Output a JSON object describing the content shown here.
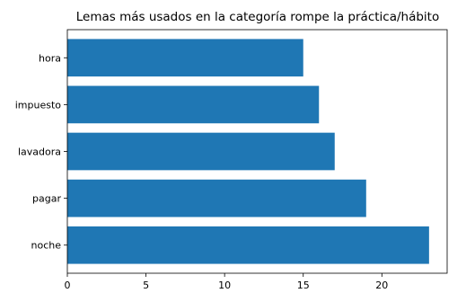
{
  "chart_data": {
    "type": "bar",
    "orientation": "horizontal",
    "title": "Lemas más usados en la categoría rompe la práctica/hábito",
    "xlabel": "",
    "ylabel": "",
    "categories": [
      "noche",
      "pagar",
      "lavadora",
      "impuesto",
      "hora"
    ],
    "values": [
      23,
      19,
      17,
      16,
      15
    ],
    "xlim": [
      0,
      24.15
    ],
    "xticks": [
      0,
      5,
      10,
      15,
      20
    ],
    "grid": false,
    "legend": "none",
    "bar_color": "#1f77b4"
  }
}
